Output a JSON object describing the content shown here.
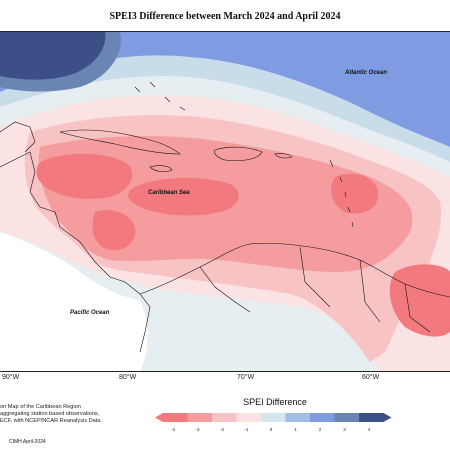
{
  "title": "SPEI3 Difference between March 2024 and April 2024",
  "regions": {
    "atlantic": "Atlantic Ocean",
    "caribbean": "Caribbean Sea",
    "pacific": "Pacific Ocean"
  },
  "longitudes": [
    "90°W",
    "80°W",
    "70°W",
    "60°W"
  ],
  "credit": [
    "on Map of the Caribbean Region",
    "aggregating station based observations,",
    "ECF, with NCEP/NCAR Reanalysis Data."
  ],
  "footer": "CIMH April-2024",
  "legend": {
    "title": "SPEI Difference",
    "ticks": [
      "-4",
      "-3",
      "-2",
      "-1",
      "0",
      "1",
      "2",
      "3",
      "4"
    ],
    "colors": [
      "#f2797e",
      "#f59d9e",
      "#f8c3c4",
      "#fbe2e3",
      "#d5e6ee",
      "#a2bde6",
      "#7f9ce3",
      "#6a85b4",
      "#3c4f86"
    ]
  },
  "palette": {
    "strong_dry": "#f2797e",
    "dry": "#f59d9e",
    "mild_dry": "#f8c3c4",
    "slight_dry": "#fbe2e3",
    "near_normal": "#d5e6ee",
    "wet": "#a2bde6",
    "very_wet": "#7f9ce3",
    "dark_wet": "#6a85b4",
    "extreme_wet": "#3c4f86"
  }
}
